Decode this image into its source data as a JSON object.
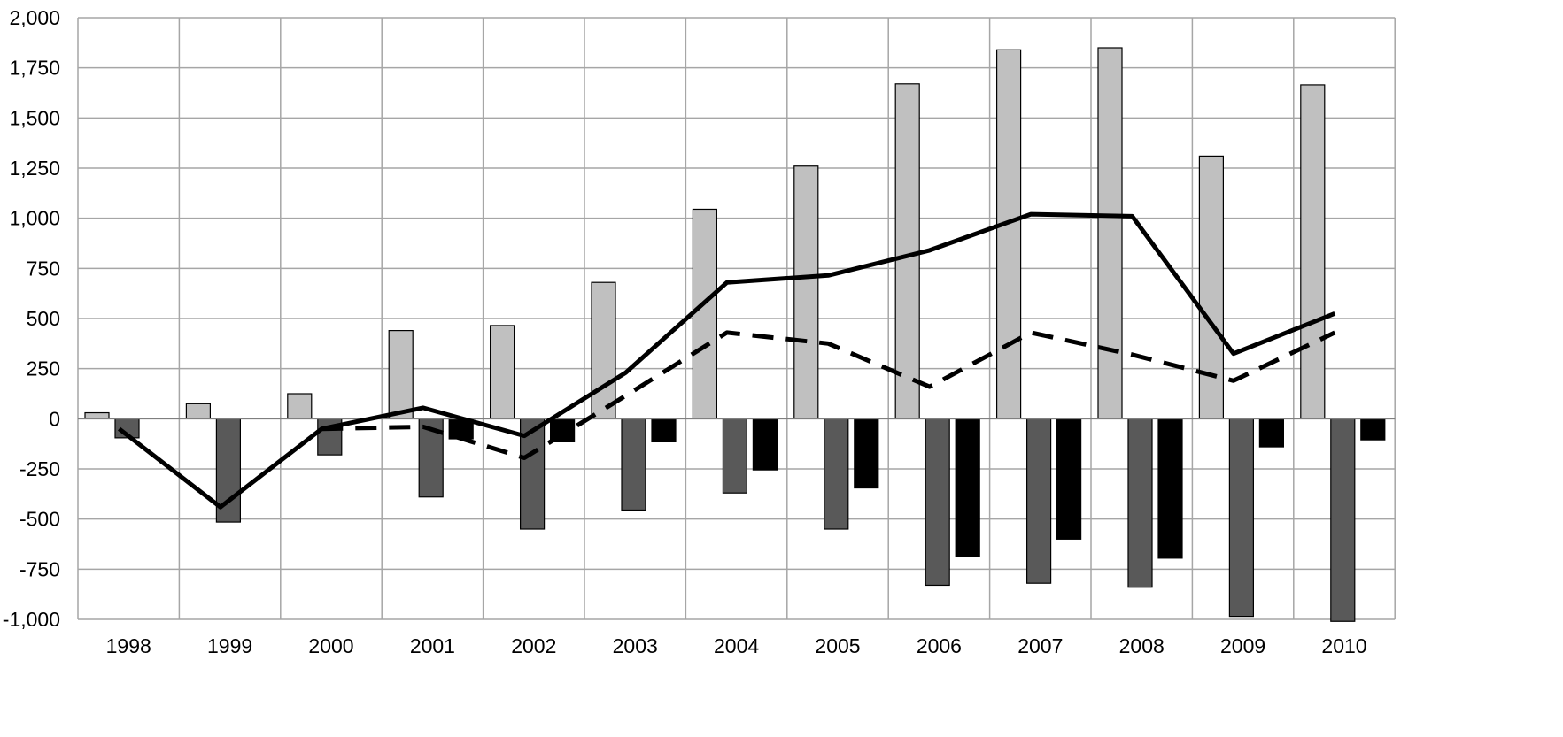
{
  "chart_data": {
    "type": "bar",
    "title": "",
    "xlabel": "",
    "ylabel": "",
    "ylim": [
      -1000,
      2000
    ],
    "yticks": [
      2000,
      1750,
      1500,
      1250,
      1000,
      750,
      500,
      250,
      0,
      -250,
      -500,
      -750,
      -1000
    ],
    "ytick_labels": [
      "2,000",
      "1,750",
      "1,500",
      "1,250",
      "1,000",
      "750",
      "500",
      "250",
      "0",
      "-250",
      "-500",
      "-750",
      "-1,000"
    ],
    "categories": [
      "1998",
      "1999",
      "2000",
      "2001",
      "2002",
      "2003",
      "2004",
      "2005",
      "2006",
      "2007",
      "2008",
      "2009",
      "2010"
    ],
    "grid": true,
    "legend": "none",
    "series": [
      {
        "kind": "bar",
        "color": "#c0c0c0",
        "values": [
          30,
          75,
          125,
          440,
          465,
          680,
          1045,
          1260,
          1670,
          1840,
          1850,
          1310,
          1665
        ]
      },
      {
        "kind": "bar",
        "color": "#595959",
        "values": [
          -95,
          -515,
          -180,
          -390,
          -550,
          -455,
          -370,
          -550,
          -830,
          -820,
          -840,
          -985,
          -1010
        ]
      },
      {
        "kind": "bar",
        "color": "#000000",
        "values": [
          null,
          null,
          null,
          -100,
          -115,
          -115,
          -255,
          -345,
          -685,
          -600,
          -695,
          -140,
          -105
        ]
      },
      {
        "kind": "line",
        "color": "#000000",
        "dashed": false,
        "values": [
          -50,
          -440,
          -50,
          55,
          -85,
          230,
          680,
          715,
          840,
          1020,
          1010,
          325,
          525
        ]
      },
      {
        "kind": "line",
        "color": "#000000",
        "dashed": true,
        "values": [
          null,
          null,
          -50,
          -40,
          -195,
          115,
          430,
          375,
          160,
          430,
          320,
          190,
          430
        ]
      }
    ]
  }
}
